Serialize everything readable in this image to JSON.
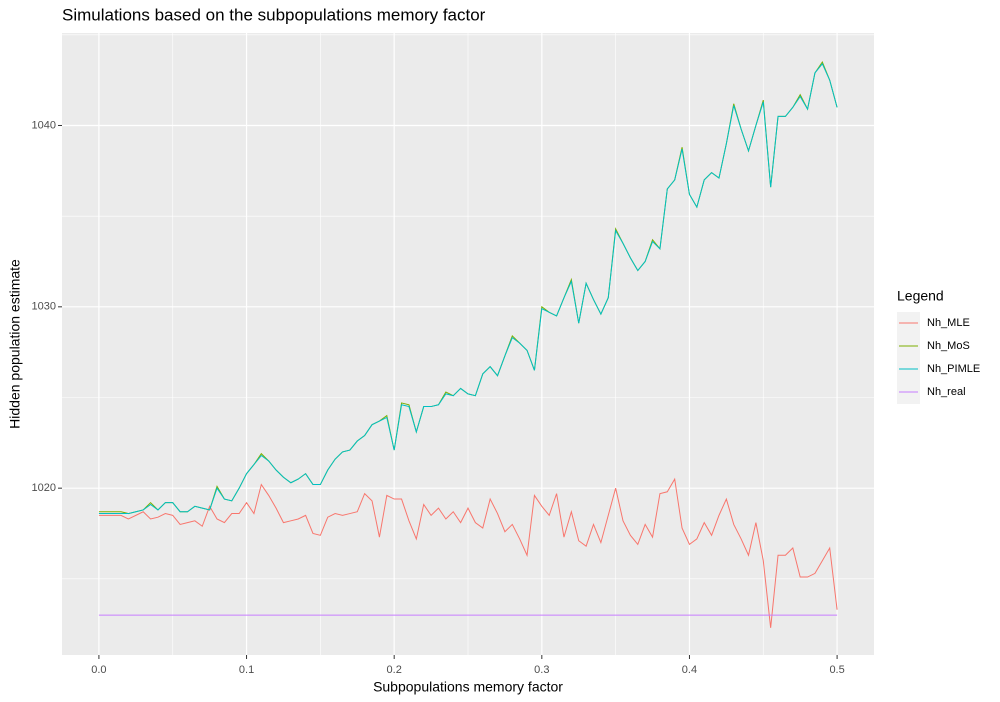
{
  "chart_data": {
    "type": "line",
    "title": "Simulations based on the subpopulations memory factor",
    "x_label": "Subpopulations memory factor",
    "y_label": "Hidden population estimate",
    "legend_title": "Legend",
    "legend_position": "right",
    "grid": true,
    "xlim": [
      -0.025,
      0.525
    ],
    "ylim": [
      1010.8,
      1045.1
    ],
    "xticks": [
      {
        "value": 0,
        "label": "0.0"
      },
      0.1,
      0.2,
      0.3,
      0.4,
      0.5
    ],
    "yticks": [
      1020,
      1030,
      1040
    ],
    "minor_xticks": [
      0.05,
      0.15,
      0.25,
      0.35,
      0.45
    ],
    "minor_yticks": [
      1015,
      1025,
      1035,
      1045
    ],
    "x": [
      0,
      0.005,
      0.01,
      0.015,
      0.02,
      0.025,
      0.03,
      0.035,
      0.04,
      0.045,
      0.05,
      0.055,
      0.06,
      0.065,
      0.07,
      0.075,
      0.08,
      0.085,
      0.09,
      0.095,
      0.1,
      0.105,
      0.11,
      0.115,
      0.12,
      0.125,
      0.13,
      0.135,
      0.14,
      0.145,
      0.15,
      0.155,
      0.16,
      0.165,
      0.17,
      0.175,
      0.18,
      0.185,
      0.19,
      0.195,
      0.2,
      0.205,
      0.21,
      0.215,
      0.22,
      0.225,
      0.23,
      0.235,
      0.24,
      0.245,
      0.25,
      0.255,
      0.26,
      0.265,
      0.27,
      0.275,
      0.28,
      0.285,
      0.29,
      0.295,
      0.3,
      0.305,
      0.31,
      0.315,
      0.32,
      0.325,
      0.33,
      0.335,
      0.34,
      0.345,
      0.35,
      0.355,
      0.36,
      0.365,
      0.37,
      0.375,
      0.38,
      0.385,
      0.39,
      0.395,
      0.4,
      0.405,
      0.41,
      0.415,
      0.42,
      0.425,
      0.43,
      0.435,
      0.44,
      0.445,
      0.45,
      0.455,
      0.46,
      0.465,
      0.47,
      0.475,
      0.48,
      0.485,
      0.49,
      0.495,
      0.5
    ],
    "series": [
      {
        "name": "Nh_MLE",
        "color": "#f8766d",
        "values": [
          1018.5,
          1018.5,
          1018.5,
          1018.5,
          1018.3,
          1018.5,
          1018.7,
          1018.3,
          1018.4,
          1018.6,
          1018.5,
          1018.0,
          1018.1,
          1018.2,
          1017.9,
          1019.0,
          1018.3,
          1018.1,
          1018.6,
          1018.6,
          1019.2,
          1018.6,
          1020.2,
          1019.6,
          1018.9,
          1018.1,
          1018.2,
          1018.3,
          1018.5,
          1017.5,
          1017.4,
          1018.4,
          1018.6,
          1018.5,
          1018.6,
          1018.7,
          1019.7,
          1019.3,
          1017.3,
          1019.6,
          1019.4,
          1019.4,
          1018.2,
          1017.2,
          1019.1,
          1018.5,
          1018.9,
          1018.3,
          1018.7,
          1018.1,
          1018.9,
          1018.1,
          1017.8,
          1019.4,
          1018.6,
          1017.6,
          1018.0,
          1017.2,
          1016.3,
          1019.6,
          1019.0,
          1018.5,
          1019.7,
          1017.3,
          1018.7,
          1017.1,
          1016.8,
          1018.0,
          1017.0,
          1018.5,
          1020.0,
          1018.2,
          1017.4,
          1016.9,
          1018.0,
          1017.3,
          1019.7,
          1019.8,
          1020.5,
          1017.8,
          1016.9,
          1017.2,
          1018.1,
          1017.4,
          1018.5,
          1019.4,
          1018.0,
          1017.2,
          1016.3,
          1018.1,
          1016.0,
          1012.3,
          1016.3,
          1016.3,
          1016.7,
          1015.1,
          1015.1,
          1015.3,
          1016.0,
          1016.7,
          1013.3
        ]
      },
      {
        "name": "Nh_MoS",
        "color": "#7cae00",
        "values": [
          1018.7,
          1018.7,
          1018.7,
          1018.7,
          1018.6,
          1018.7,
          1018.8,
          1019.2,
          1018.8,
          1019.2,
          1019.2,
          1018.7,
          1018.7,
          1019.0,
          1018.9,
          1018.8,
          1020.1,
          1019.4,
          1019.3,
          1020.0,
          1020.8,
          1021.3,
          1021.9,
          1021.5,
          1021.0,
          1020.6,
          1020.3,
          1020.5,
          1020.8,
          1020.2,
          1020.2,
          1021.0,
          1021.6,
          1022.0,
          1022.1,
          1022.6,
          1022.9,
          1023.5,
          1023.7,
          1024.0,
          1022.1,
          1024.7,
          1024.6,
          1023.1,
          1024.5,
          1024.5,
          1024.6,
          1025.3,
          1025.1,
          1025.5,
          1025.2,
          1025.1,
          1026.3,
          1026.7,
          1026.2,
          1027.3,
          1028.4,
          1028.0,
          1027.6,
          1026.5,
          1030.0,
          1029.7,
          1029.5,
          1030.5,
          1031.5,
          1029.1,
          1031.3,
          1030.4,
          1029.6,
          1030.5,
          1034.3,
          1033.5,
          1032.7,
          1032.0,
          1032.5,
          1033.7,
          1033.2,
          1036.5,
          1037.0,
          1038.8,
          1036.2,
          1035.5,
          1037.0,
          1037.4,
          1037.1,
          1039.0,
          1041.2,
          1039.8,
          1038.6,
          1040.0,
          1041.4,
          1036.6,
          1040.5,
          1040.5,
          1041.0,
          1041.7,
          1040.9,
          1042.9,
          1043.5,
          1042.5,
          1041.0
        ]
      },
      {
        "name": "Nh_PIMLE",
        "color": "#00bfc4",
        "values": [
          1018.6,
          1018.6,
          1018.6,
          1018.6,
          1018.6,
          1018.7,
          1018.8,
          1019.1,
          1018.8,
          1019.2,
          1019.2,
          1018.7,
          1018.7,
          1019.0,
          1018.9,
          1018.8,
          1020.0,
          1019.4,
          1019.3,
          1020.0,
          1020.8,
          1021.3,
          1021.8,
          1021.5,
          1021.0,
          1020.6,
          1020.3,
          1020.5,
          1020.8,
          1020.2,
          1020.2,
          1021.0,
          1021.6,
          1022.0,
          1022.1,
          1022.6,
          1022.9,
          1023.5,
          1023.7,
          1023.9,
          1022.1,
          1024.6,
          1024.5,
          1023.1,
          1024.5,
          1024.5,
          1024.6,
          1025.2,
          1025.1,
          1025.5,
          1025.2,
          1025.1,
          1026.3,
          1026.7,
          1026.2,
          1027.3,
          1028.3,
          1028.0,
          1027.6,
          1026.5,
          1029.9,
          1029.7,
          1029.5,
          1030.5,
          1031.4,
          1029.1,
          1031.3,
          1030.4,
          1029.6,
          1030.5,
          1034.2,
          1033.5,
          1032.7,
          1032.0,
          1032.5,
          1033.6,
          1033.2,
          1036.5,
          1037.0,
          1038.7,
          1036.2,
          1035.5,
          1037.0,
          1037.4,
          1037.1,
          1039.0,
          1041.1,
          1039.8,
          1038.6,
          1040.0,
          1041.3,
          1036.6,
          1040.5,
          1040.5,
          1041.0,
          1041.6,
          1040.9,
          1042.9,
          1043.4,
          1042.5,
          1041.0
        ]
      },
      {
        "name": "Nh_real",
        "color": "#c77cff",
        "values": [
          1013,
          1013,
          1013,
          1013,
          1013,
          1013,
          1013,
          1013,
          1013,
          1013,
          1013,
          1013,
          1013,
          1013,
          1013,
          1013,
          1013,
          1013,
          1013,
          1013,
          1013,
          1013,
          1013,
          1013,
          1013,
          1013,
          1013,
          1013,
          1013,
          1013,
          1013,
          1013,
          1013,
          1013,
          1013,
          1013,
          1013,
          1013,
          1013,
          1013,
          1013,
          1013,
          1013,
          1013,
          1013,
          1013,
          1013,
          1013,
          1013,
          1013,
          1013,
          1013,
          1013,
          1013,
          1013,
          1013,
          1013,
          1013,
          1013,
          1013,
          1013,
          1013,
          1013,
          1013,
          1013,
          1013,
          1013,
          1013,
          1013,
          1013,
          1013,
          1013,
          1013,
          1013,
          1013,
          1013,
          1013,
          1013,
          1013,
          1013,
          1013,
          1013,
          1013,
          1013,
          1013,
          1013,
          1013,
          1013,
          1013,
          1013,
          1013,
          1013,
          1013,
          1013,
          1013,
          1013,
          1013,
          1013,
          1013,
          1013,
          1013
        ]
      }
    ]
  }
}
